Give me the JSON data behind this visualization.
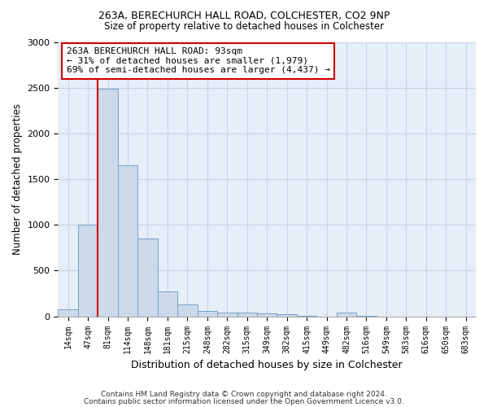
{
  "title_line1": "263A, BERECHURCH HALL ROAD, COLCHESTER, CO2 9NP",
  "title_line2": "Size of property relative to detached houses in Colchester",
  "xlabel": "Distribution of detached houses by size in Colchester",
  "ylabel": "Number of detached properties",
  "footer_line1": "Contains HM Land Registry data © Crown copyright and database right 2024.",
  "footer_line2": "Contains public sector information licensed under the Open Government Licence v3.0.",
  "bar_labels": [
    "14sqm",
    "47sqm",
    "81sqm",
    "114sqm",
    "148sqm",
    "181sqm",
    "215sqm",
    "248sqm",
    "282sqm",
    "315sqm",
    "349sqm",
    "382sqm",
    "415sqm",
    "449sqm",
    "482sqm",
    "516sqm",
    "549sqm",
    "583sqm",
    "616sqm",
    "650sqm",
    "683sqm"
  ],
  "bar_values": [
    75,
    1000,
    2490,
    1650,
    850,
    270,
    135,
    60,
    45,
    40,
    30,
    20,
    5,
    0,
    40,
    5,
    0,
    0,
    0,
    0,
    0
  ],
  "bar_color": "#ccd9ea",
  "bar_edge_color": "#7aa0c4",
  "grid_color": "#c5d5e8",
  "bg_color": "#e6eef8",
  "property_line_color": "#cc0000",
  "property_line_bar_index": 2,
  "annotation_text": "263A BERECHURCH HALL ROAD: 93sqm\n← 31% of detached houses are smaller (1,979)\n69% of semi-detached houses are larger (4,437) →",
  "annotation_box_color": "#ffffff",
  "annotation_box_edge": "#cc0000",
  "ylim": [
    0,
    3000
  ],
  "yticks": [
    0,
    500,
    1000,
    1500,
    2000,
    2500,
    3000
  ]
}
